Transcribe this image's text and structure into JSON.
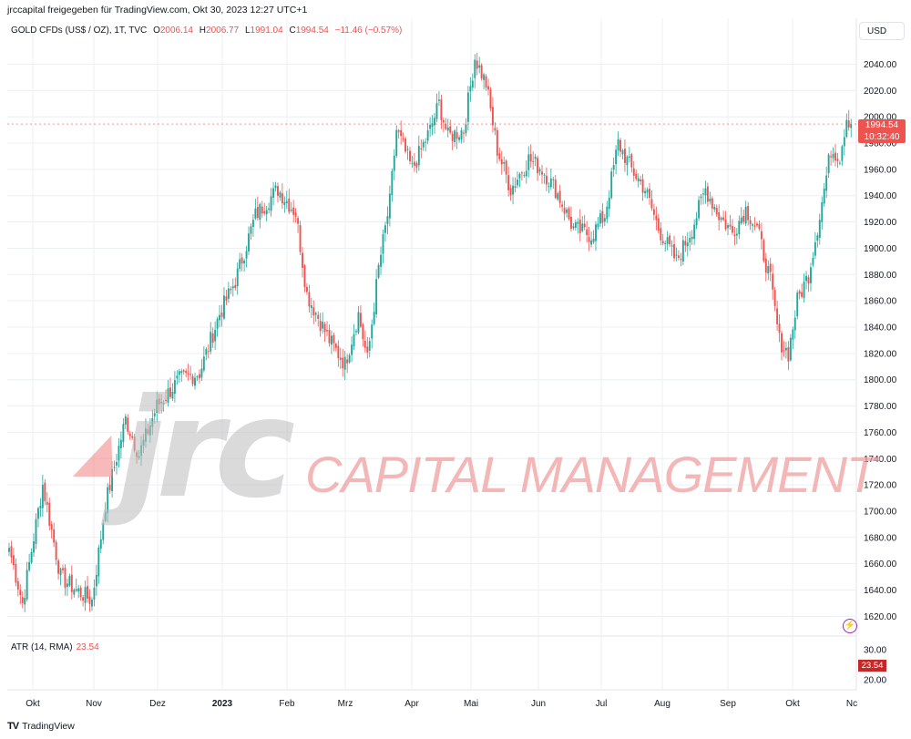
{
  "header": {
    "publish_note": "jrccapital freigegeben für TradingView.com, Okt 30, 2023 12:27 UTC+1"
  },
  "legend": {
    "symbol": "GOLD CFDs (US$ / OZ), 1T, TVC",
    "o_key": "O",
    "o_val": "2006.14",
    "h_key": "H",
    "h_val": "2006.77",
    "l_key": "L",
    "l_val": "1991.04",
    "c_key": "C",
    "c_val": "1994.54",
    "change": "−11.46 (−0.57%)"
  },
  "currency_button": "USD",
  "price_tag": {
    "price": "1994.54",
    "countdown": "10:32:40"
  },
  "indicator": {
    "name": "ATR (14, RMA)",
    "value": "23.54"
  },
  "atr_tag": "23.54",
  "watermark": {
    "brand": "jrc",
    "text": "CAPITAL MANAGEMENT"
  },
  "footer": {
    "logo": "TV",
    "brand": "TradingView"
  },
  "colors": {
    "up": "#26a69a",
    "down": "#ef5350",
    "grid": "#eceff3",
    "axis_text": "#131722",
    "atr_line": "#ef5350"
  },
  "chart_data": {
    "type": "candlestick",
    "title": "GOLD CFDs (US$ / OZ), 1T, TVC",
    "ylim": [
      1605,
      2075
    ],
    "y_ticks": [
      "2040.00",
      "2020.00",
      "2000.00",
      "1980.00",
      "1960.00",
      "1940.00",
      "1920.00",
      "1900.00",
      "1880.00",
      "1860.00",
      "1840.00",
      "1820.00",
      "1800.00",
      "1780.00",
      "1760.00",
      "1740.00",
      "1720.00",
      "1700.00",
      "1680.00",
      "1660.00",
      "1640.00",
      "1620.00"
    ],
    "x_ticks": [
      "Okt",
      "Nov",
      "Dez",
      "2023",
      "Feb",
      "Mrz",
      "Apr",
      "Mai",
      "Jun",
      "Jul",
      "Aug",
      "Sep",
      "Okt",
      "Nc"
    ],
    "last_close": 1994.54,
    "atr_ticks": [
      "30.00",
      "20.00"
    ],
    "atr_ylim": [
      17,
      34
    ],
    "anchors": [
      {
        "i": 0,
        "p": 1672
      },
      {
        "i": 6,
        "p": 1630
      },
      {
        "i": 15,
        "p": 1720
      },
      {
        "i": 23,
        "p": 1650
      },
      {
        "i": 30,
        "p": 1640
      },
      {
        "i": 37,
        "p": 1632
      },
      {
        "i": 43,
        "p": 1705
      },
      {
        "i": 52,
        "p": 1770
      },
      {
        "i": 58,
        "p": 1743
      },
      {
        "i": 66,
        "p": 1780
      },
      {
        "i": 76,
        "p": 1800
      },
      {
        "i": 85,
        "p": 1805
      },
      {
        "i": 94,
        "p": 1850
      },
      {
        "i": 101,
        "p": 1875
      },
      {
        "i": 110,
        "p": 1925
      },
      {
        "i": 120,
        "p": 1945
      },
      {
        "i": 128,
        "p": 1927
      },
      {
        "i": 133,
        "p": 1865
      },
      {
        "i": 143,
        "p": 1830
      },
      {
        "i": 150,
        "p": 1812
      },
      {
        "i": 156,
        "p": 1850
      },
      {
        "i": 160,
        "p": 1815
      },
      {
        "i": 165,
        "p": 1885
      },
      {
        "i": 170,
        "p": 1935
      },
      {
        "i": 173,
        "p": 1990
      },
      {
        "i": 180,
        "p": 1960
      },
      {
        "i": 188,
        "p": 1990
      },
      {
        "i": 192,
        "p": 2010
      },
      {
        "i": 196,
        "p": 1985
      },
      {
        "i": 203,
        "p": 1990
      },
      {
        "i": 208,
        "p": 2045
      },
      {
        "i": 213,
        "p": 2025
      },
      {
        "i": 218,
        "p": 1975
      },
      {
        "i": 224,
        "p": 1945
      },
      {
        "i": 232,
        "p": 1968
      },
      {
        "i": 238,
        "p": 1960
      },
      {
        "i": 244,
        "p": 1945
      },
      {
        "i": 252,
        "p": 1915
      },
      {
        "i": 260,
        "p": 1910
      },
      {
        "i": 266,
        "p": 1925
      },
      {
        "i": 272,
        "p": 1980
      },
      {
        "i": 278,
        "p": 1960
      },
      {
        "i": 284,
        "p": 1945
      },
      {
        "i": 290,
        "p": 1915
      },
      {
        "i": 298,
        "p": 1890
      },
      {
        "i": 305,
        "p": 1915
      },
      {
        "i": 311,
        "p": 1945
      },
      {
        "i": 317,
        "p": 1925
      },
      {
        "i": 323,
        "p": 1912
      },
      {
        "i": 329,
        "p": 1930
      },
      {
        "i": 334,
        "p": 1915
      },
      {
        "i": 340,
        "p": 1875
      },
      {
        "i": 344,
        "p": 1830
      },
      {
        "i": 348,
        "p": 1820
      },
      {
        "i": 352,
        "p": 1860
      },
      {
        "i": 357,
        "p": 1880
      },
      {
        "i": 362,
        "p": 1925
      },
      {
        "i": 367,
        "p": 1975
      },
      {
        "i": 371,
        "p": 1970
      },
      {
        "i": 374,
        "p": 2000
      },
      {
        "i": 376,
        "p": 1995
      }
    ]
  }
}
